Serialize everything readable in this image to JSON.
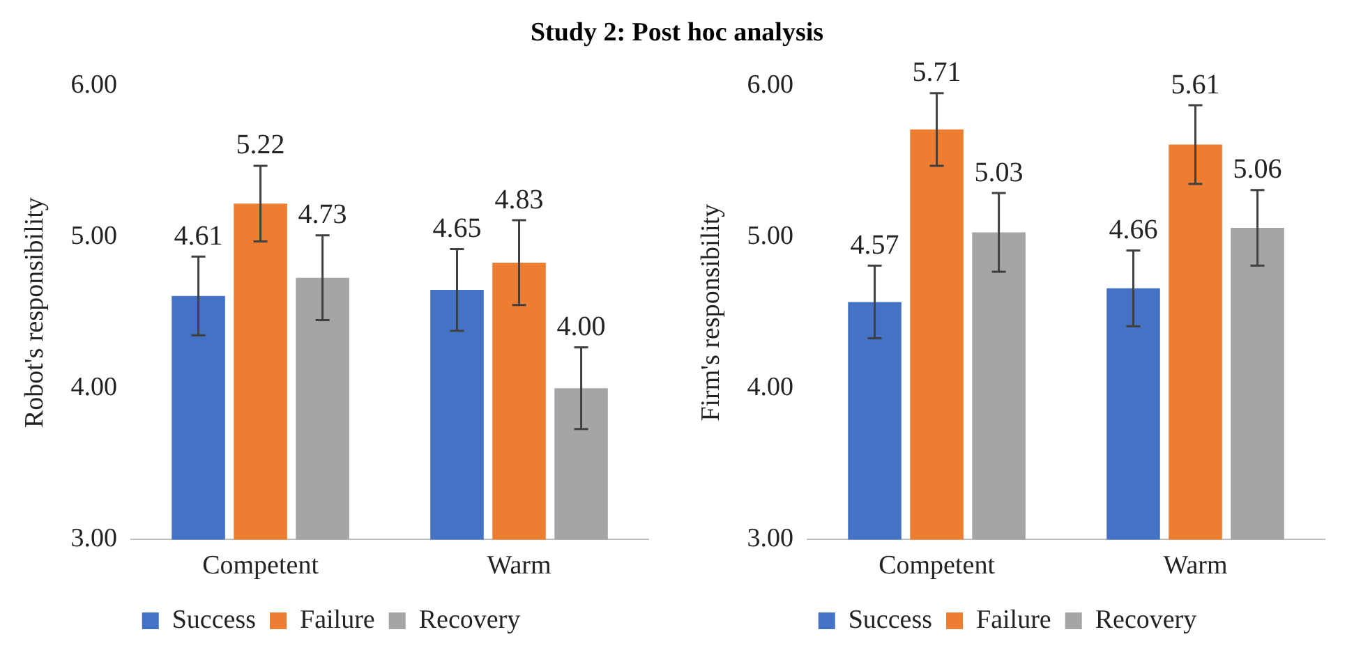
{
  "chart_data": [
    {
      "type": "bar",
      "title": "Study 2: Post hoc analysis",
      "ylabel": "Robot's responsibility",
      "categories": [
        "Competent",
        "Warm"
      ],
      "series": [
        {
          "name": "Success",
          "color": "#4472c4",
          "values": [
            4.61,
            4.65
          ],
          "errors": [
            0.26,
            0.27
          ],
          "value_labels": [
            "4.61",
            "4.65"
          ]
        },
        {
          "name": "Failure",
          "color": "#ed7d31",
          "values": [
            5.22,
            4.83
          ],
          "errors": [
            0.25,
            0.28
          ],
          "value_labels": [
            "5.22",
            "4.83"
          ]
        },
        {
          "name": "Recovery",
          "color": "#a5a5a5",
          "values": [
            4.73,
            4.0
          ],
          "errors": [
            0.28,
            0.27
          ],
          "value_labels": [
            "4.73",
            "4.00"
          ]
        }
      ],
      "ylim": [
        3,
        6
      ],
      "yticks": [
        {
          "value": 3,
          "label": "3.00"
        },
        {
          "value": 4,
          "label": "4.00"
        },
        {
          "value": 5,
          "label": "5.00"
        },
        {
          "value": 6,
          "label": "6.00"
        }
      ],
      "grid": false,
      "legend": "bottom"
    },
    {
      "type": "bar",
      "ylabel": "Firm's responsibility",
      "categories": [
        "Competent",
        "Warm"
      ],
      "series": [
        {
          "name": "Success",
          "color": "#4472c4",
          "values": [
            4.57,
            4.66
          ],
          "errors": [
            0.24,
            0.25
          ],
          "value_labels": [
            "4.57",
            "4.66"
          ]
        },
        {
          "name": "Failure",
          "color": "#ed7d31",
          "values": [
            5.71,
            5.61
          ],
          "errors": [
            0.24,
            0.26
          ],
          "value_labels": [
            "5.71",
            "5.61"
          ]
        },
        {
          "name": "Recovery",
          "color": "#a5a5a5",
          "values": [
            5.03,
            5.06
          ],
          "errors": [
            0.26,
            0.25
          ],
          "value_labels": [
            "5.03",
            "5.06"
          ]
        }
      ],
      "ylim": [
        3,
        6
      ],
      "yticks": [
        {
          "value": 3,
          "label": "3.00"
        },
        {
          "value": 4,
          "label": "4.00"
        },
        {
          "value": 5,
          "label": "5.00"
        },
        {
          "value": 6,
          "label": "6.00"
        }
      ],
      "grid": false,
      "legend": "bottom"
    }
  ]
}
